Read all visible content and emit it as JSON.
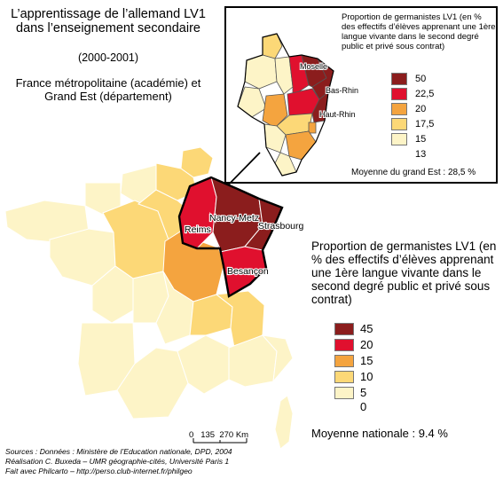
{
  "title": "L’apprentissage de l’allemand LV1 dans l’enseignement secondaire",
  "period": "(2000-2001)",
  "scope": "France métropolitaine (académie) et Grand Est (département)",
  "main_legend": {
    "title": "Proportion de germanistes LV1 (en % des effectifs d’élèves apprenant une 1ère langue vivante dans le second degré public et privé sous contrat)",
    "classes": [
      {
        "label": "45",
        "color": "#8b1d1d"
      },
      {
        "label": "20",
        "color": "#e0102e"
      },
      {
        "label": "15",
        "color": "#f4a43f"
      },
      {
        "label": "10",
        "color": "#fcd877"
      },
      {
        "label": "5",
        "color": "#fdf4c7"
      },
      {
        "label": "0",
        "color": ""
      }
    ],
    "mean": "Moyenne nationale : 9.4 %"
  },
  "inset_legend": {
    "title": "Proportion de germanistes LV1 (en % des effectifs d’élèves apprenant une 1ère langue vivante dans le second degré public et privé sous contrat)",
    "classes": [
      {
        "label": "50",
        "color": "#8b1d1d"
      },
      {
        "label": "22,5",
        "color": "#e0102e"
      },
      {
        "label": "20",
        "color": "#f4a43f"
      },
      {
        "label": "17,5",
        "color": "#fcd877"
      },
      {
        "label": "15",
        "color": "#fdf4c7"
      },
      {
        "label": "13",
        "color": ""
      }
    ],
    "mean": "Moyenne du grand Est : 28,5 %"
  },
  "map_labels": {
    "nancy_metz": "Nancy-Metz",
    "strasbourg": "Strasbourg",
    "reims": "Reims",
    "besancon": "Besançon"
  },
  "inset_labels": {
    "moselle": "Moselle",
    "bas_rhin": "Bas-Rhin",
    "haut_rhin": "Haut-Rhin"
  },
  "scale": "0   135  270 Km",
  "sources": [
    "Sources : Données : Ministère de l’Education nationale, DPD, 2004",
    "Réalisation C. Buxeda – UMR géographie-cités, Université Paris 1",
    "Fait avec Philcarto – http://perso.club-internet.fr/philgeo"
  ]
}
